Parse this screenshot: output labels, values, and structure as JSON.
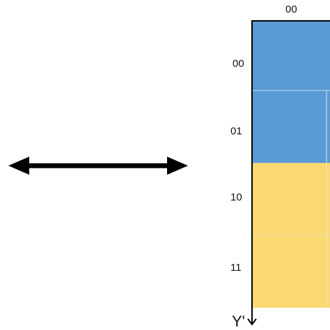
{
  "column_label": "00",
  "row_labels": [
    "00",
    "01",
    "10",
    "11"
  ],
  "row_colors": [
    "#5b9bd5",
    "#5b9bd5",
    "#fad970",
    "#fad970"
  ],
  "axis_label": "Y'",
  "arrow_color": "#000000",
  "grid_line_color": "#d9d9d9"
}
